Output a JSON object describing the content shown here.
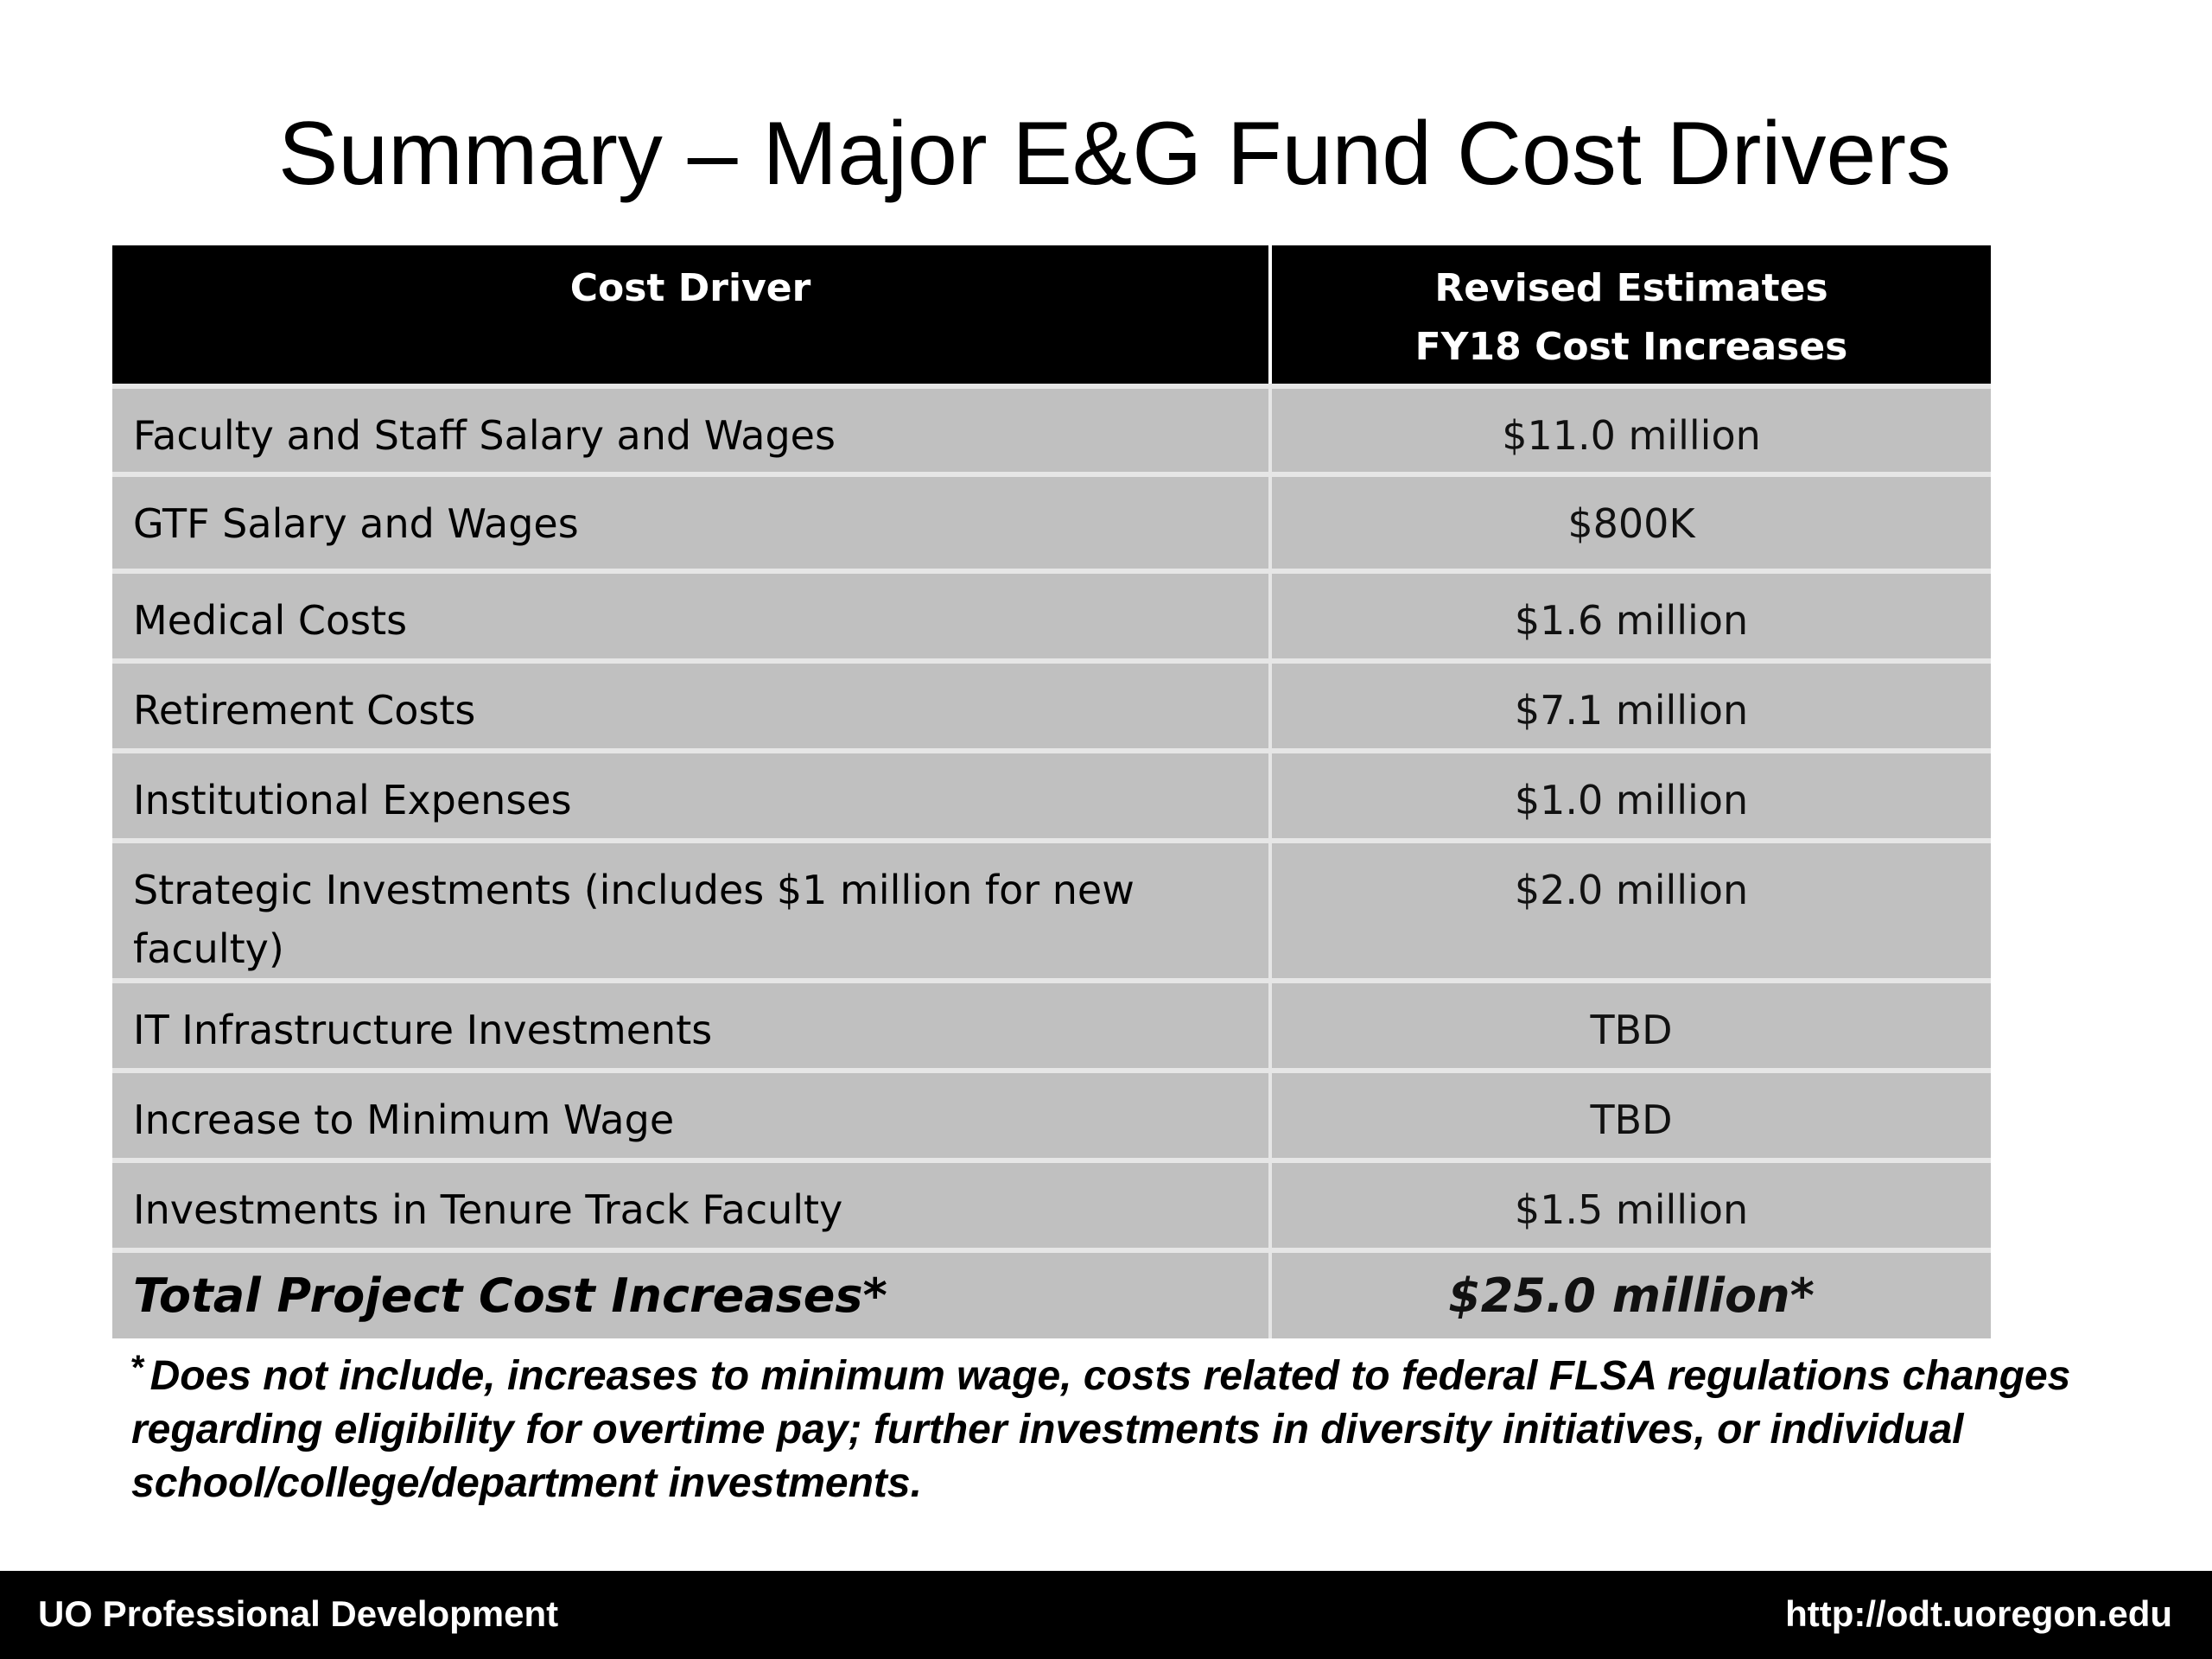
{
  "title": "Summary – Major E&G Fund Cost Drivers",
  "table": {
    "header": {
      "col1": "Cost Driver",
      "col2_line1": "Revised Estimates",
      "col2_line2": "FY18 Cost Increases"
    },
    "rows": [
      {
        "label": "Faculty and Staff Salary and Wages",
        "value": "$11.0 million"
      },
      {
        "label": "GTF Salary and Wages",
        "value": "$800K"
      },
      {
        "label": "Medical Costs",
        "value": "$1.6 million"
      },
      {
        "label": "Retirement Costs",
        "value": "$7.1 million"
      },
      {
        "label": "Institutional Expenses",
        "value": "$1.0 million"
      },
      {
        "label": "Strategic Investments (includes $1 million for new faculty)",
        "value": "$2.0 million"
      },
      {
        "label": "IT Infrastructure Investments",
        "value": "TBD"
      },
      {
        "label": "Increase to Minimum Wage",
        "value": "TBD"
      },
      {
        "label": "Investments in Tenure Track Faculty",
        "value": "$1.5 million"
      }
    ],
    "total": {
      "label": "Total Project Cost Increases*",
      "value": "$25.0 million*"
    }
  },
  "footnote": {
    "star": "*",
    "text": "Does not include, increases to minimum wage, costs related to federal FLSA regulations changes regarding eligibility for overtime pay; further investments in diversity initiatives, or individual school/college/department investments."
  },
  "footer": {
    "left": "UO Professional Development",
    "right": "http://odt.uoregon.edu"
  }
}
